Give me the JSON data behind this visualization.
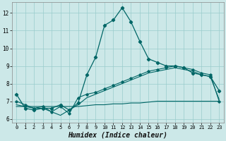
{
  "background_color": "#cce8e8",
  "grid_color": "#99cccc",
  "line_color": "#006666",
  "xlabel": "Humidex (Indice chaleur)",
  "xlabel_fontsize": 7,
  "yticks": [
    6,
    7,
    8,
    9,
    10,
    11,
    12
  ],
  "xticks": [
    0,
    1,
    2,
    3,
    4,
    5,
    6,
    7,
    8,
    9,
    10,
    11,
    12,
    13,
    14,
    15,
    16,
    17,
    18,
    19,
    20,
    21,
    22,
    23
  ],
  "ylim": [
    5.8,
    12.6
  ],
  "xlim": [
    -0.5,
    23.5
  ],
  "series1_x": [
    0,
    1,
    2,
    3,
    4,
    5,
    6,
    7,
    8,
    9,
    10,
    11,
    12,
    13,
    14,
    15,
    16,
    17,
    18,
    19,
    20,
    21,
    22,
    23
  ],
  "series1_y": [
    7.4,
    6.6,
    6.5,
    6.6,
    6.6,
    6.8,
    6.5,
    6.9,
    8.5,
    9.5,
    11.3,
    11.6,
    12.3,
    11.5,
    10.4,
    9.4,
    9.2,
    9.0,
    9.0,
    8.9,
    8.6,
    8.5,
    8.4,
    7.6
  ],
  "series2_x": [
    0,
    1,
    2,
    3,
    4,
    5,
    6,
    7,
    8,
    9,
    10,
    11,
    12,
    13,
    14,
    15,
    16,
    17,
    18,
    19,
    20,
    21,
    22,
    23
  ],
  "series2_y": [
    7.0,
    6.8,
    6.6,
    6.7,
    6.4,
    6.7,
    6.3,
    7.2,
    7.4,
    7.5,
    7.7,
    7.9,
    8.1,
    8.3,
    8.5,
    8.7,
    8.8,
    8.9,
    9.0,
    8.9,
    8.8,
    8.6,
    8.5,
    7.0
  ],
  "series3_x": [
    0,
    1,
    2,
    3,
    4,
    5,
    6,
    7,
    8,
    9,
    10,
    11,
    12,
    13,
    14,
    15,
    16,
    17,
    18,
    19,
    20,
    21,
    22,
    23
  ],
  "series3_y": [
    6.8,
    6.7,
    6.6,
    6.6,
    6.4,
    6.2,
    6.5,
    6.8,
    7.2,
    7.4,
    7.6,
    7.8,
    8.0,
    8.2,
    8.4,
    8.6,
    8.7,
    8.8,
    8.9,
    8.8,
    8.7,
    8.5,
    8.4,
    7.1
  ],
  "series4_x": [
    0,
    1,
    2,
    3,
    4,
    5,
    6,
    7,
    8,
    9,
    10,
    11,
    12,
    13,
    14,
    15,
    16,
    17,
    18,
    19,
    20,
    21,
    22,
    23
  ],
  "series4_y": [
    6.7,
    6.7,
    6.7,
    6.7,
    6.7,
    6.7,
    6.7,
    6.7,
    6.75,
    6.8,
    6.8,
    6.85,
    6.85,
    6.9,
    6.9,
    6.95,
    7.0,
    7.0,
    7.0,
    7.0,
    7.0,
    7.0,
    7.0,
    7.0
  ]
}
